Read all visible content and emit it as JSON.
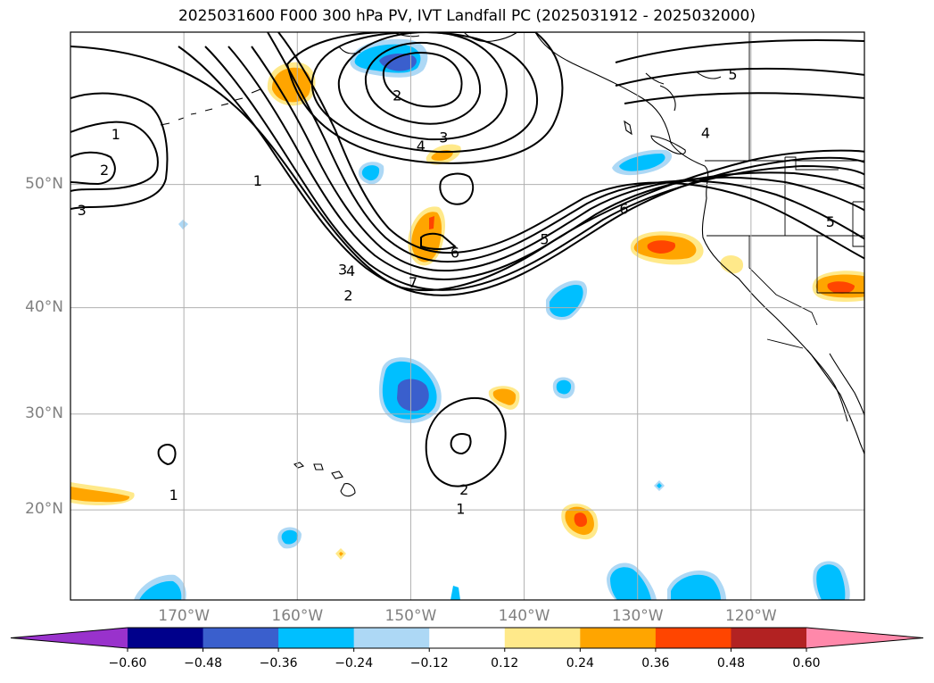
{
  "map": {
    "title": "2025031600 F000 300 hPa PV, IVT Landfall PC (2025031912 - 2025032000)",
    "lon_range": [
      -180,
      -110
    ],
    "lat_range": [
      10,
      60
    ],
    "lat_labels": [
      {
        "lat": 50,
        "text": "50°N"
      },
      {
        "lat": 40,
        "text": "40°N"
      },
      {
        "lat": 30,
        "text": "30°N"
      },
      {
        "lat": 20,
        "text": "20°N"
      }
    ],
    "lon_labels": [
      {
        "lon": -170,
        "text": "170°W"
      },
      {
        "lon": -160,
        "text": "160°W"
      },
      {
        "lon": -150,
        "text": "150°W"
      },
      {
        "lon": -140,
        "text": "140°W"
      },
      {
        "lon": -130,
        "text": "130°W"
      },
      {
        "lon": -120,
        "text": "120°W"
      }
    ],
    "grid_lons": [
      -170,
      -160,
      -150,
      -140,
      -130,
      -120
    ],
    "grid_lats": [
      20,
      30,
      40,
      50
    ],
    "pv_contour_labels": [
      {
        "text": "1",
        "lon": -176,
        "lat": 53.5
      },
      {
        "text": "2",
        "lon": -177,
        "lat": 51
      },
      {
        "text": "3",
        "lon": -179,
        "lat": 48
      },
      {
        "text": "1",
        "lon": -163.5,
        "lat": 50.2
      },
      {
        "text": "3",
        "lon": -156,
        "lat": 43.2
      },
      {
        "text": "4",
        "lon": -155.3,
        "lat": 43.1
      },
      {
        "text": "2",
        "lon": -155.5,
        "lat": 41
      },
      {
        "text": "7",
        "lon": -149.8,
        "lat": 42.1
      },
      {
        "text": "6",
        "lon": -146.1,
        "lat": 44.6
      },
      {
        "text": "5",
        "lon": -138.2,
        "lat": 45.7
      },
      {
        "text": "6",
        "lon": -131.2,
        "lat": 48.1
      },
      {
        "text": "2",
        "lon": -151.2,
        "lat": 56.1
      },
      {
        "text": "3",
        "lon": -147.1,
        "lat": 53.3
      },
      {
        "text": "4",
        "lon": -149.1,
        "lat": 52.7
      },
      {
        "text": "4",
        "lon": -124,
        "lat": 53.6
      },
      {
        "text": "5",
        "lon": -121.6,
        "lat": 57.4
      },
      {
        "text": "5",
        "lon": -113,
        "lat": 47.1
      },
      {
        "text": "2",
        "lon": -145.3,
        "lat": 22.1
      },
      {
        "text": "1",
        "lon": -145.6,
        "lat": 20
      },
      {
        "text": "1",
        "lon": -170.9,
        "lat": 21.5
      }
    ],
    "ivt_fill_colors": {
      "pos1": "#ffe98a",
      "pos2": "#ffa500",
      "pos3": "#ff4500",
      "neg1": "#add8f5",
      "neg2": "#00bfff",
      "neg3": "#3a5fcd"
    }
  },
  "colorbar": {
    "levels": [
      -0.6,
      -0.48,
      -0.36,
      -0.24,
      -0.12,
      0.12,
      0.24,
      0.36,
      0.48,
      0.6
    ],
    "tick_labels": [
      "−0.60",
      "−0.48",
      "−0.36",
      "−0.24",
      "−0.12",
      "0.12",
      "0.24",
      "0.36",
      "0.48",
      "0.60"
    ],
    "colors": [
      "#9932cc",
      "#00008b",
      "#3a5fcd",
      "#00bfff",
      "#add8f5",
      "#ffffff",
      "#ffe98a",
      "#ffa500",
      "#ff4500",
      "#b22222",
      "#ff88aa"
    ]
  }
}
